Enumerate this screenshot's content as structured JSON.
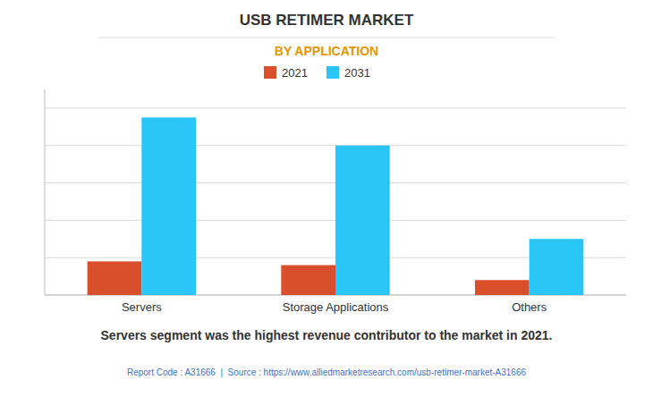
{
  "chart_data": {
    "type": "bar",
    "title": "USB RETIMER MARKET",
    "subtitle": "BY APPLICATION",
    "categories": [
      "Servers",
      "Storage Applications",
      "Others"
    ],
    "series": [
      {
        "name": "2021",
        "color": "#d94f2b",
        "values": [
          18,
          16,
          8
        ]
      },
      {
        "name": "2031",
        "color": "#29c5f6",
        "values": [
          95,
          80,
          30
        ]
      }
    ],
    "ylim": [
      0,
      110
    ],
    "yticks": [
      0,
      20,
      40,
      60,
      80,
      100
    ],
    "grid": true,
    "legend": "top",
    "tick_labels": "x",
    "annotations": [
      "Servers segment was the highest revenue contributor to the market in 2021.",
      "Report Code : A31666  |  Source : https://www.alliedmarketresearch.com/usb-retimer-market-A31666"
    ]
  }
}
